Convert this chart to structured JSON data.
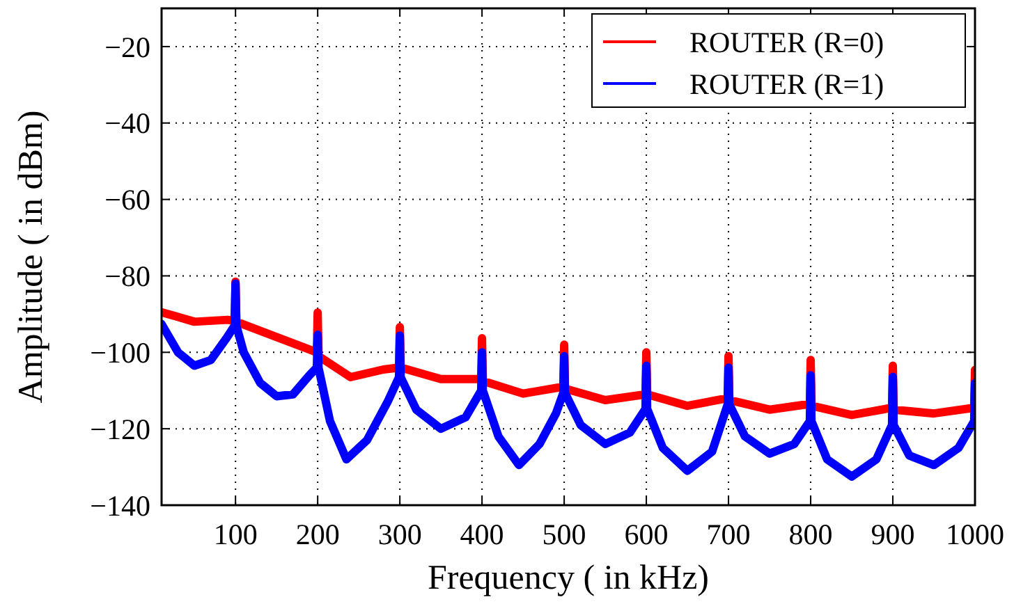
{
  "chart_data": {
    "type": "line",
    "xlabel": "Frequency ( in kHz)",
    "ylabel": "Amplitude ( in dBm)",
    "xlim": [
      10,
      1000
    ],
    "xticks": [
      100,
      200,
      300,
      400,
      500,
      600,
      700,
      800,
      900,
      1000
    ],
    "ylim": [
      -140,
      -10
    ],
    "yticks": [
      -140,
      -120,
      -100,
      -80,
      -60,
      -40,
      -20
    ],
    "grid": true,
    "legend": "top right",
    "line_style": "solid",
    "marker": "none",
    "series": [
      {
        "name": "ROUTER (R=0)",
        "color": "#ff0000",
        "x": [
          10,
          50,
          90,
          99,
          100,
          101,
          150,
          199,
          200,
          201,
          240,
          280,
          299,
          300,
          301,
          350,
          399,
          400,
          401,
          450,
          499,
          500,
          501,
          550,
          599,
          600,
          601,
          650,
          699,
          700,
          701,
          750,
          799,
          800,
          801,
          850,
          899,
          900,
          901,
          950,
          999,
          1000
        ],
        "values": [
          -89.5,
          -92,
          -91.5,
          -91.7,
          -81.5,
          -92,
          -96,
          -100,
          -89.6,
          -101,
          -106.5,
          -104.5,
          -104,
          -93.4,
          -104,
          -107,
          -107,
          -96.3,
          -107.5,
          -110.8,
          -109,
          -98,
          -109.5,
          -112.5,
          -111,
          -100,
          -111,
          -114,
          -112,
          -101,
          -112.5,
          -115,
          -113.5,
          -102,
          -114,
          -116.4,
          -114.5,
          -103.5,
          -115,
          -116,
          -114.5,
          -104.6
        ]
      },
      {
        "name": "ROUTER (R=1)",
        "color": "#0000ff",
        "x": [
          10,
          30,
          50,
          70,
          90,
          99,
          100,
          101,
          110,
          130,
          150,
          170,
          190,
          199,
          200,
          201,
          215,
          235,
          260,
          285,
          299,
          300,
          301,
          320,
          350,
          380,
          399,
          400,
          401,
          420,
          445,
          470,
          490,
          499,
          500,
          501,
          520,
          550,
          580,
          599,
          600,
          601,
          620,
          650,
          680,
          699,
          700,
          701,
          720,
          750,
          780,
          799,
          800,
          801,
          820,
          850,
          880,
          899,
          900,
          901,
          920,
          950,
          980,
          999,
          1000
        ],
        "values": [
          -92.6,
          -100,
          -103.5,
          -102,
          -96,
          -93,
          -82,
          -93,
          -100,
          -108,
          -111.5,
          -111,
          -106,
          -104,
          -95.4,
          -104,
          -118,
          -128,
          -123,
          -113,
          -106.5,
          -95.6,
          -106.5,
          -115,
          -120,
          -117,
          -110,
          -100,
          -110,
          -122,
          -129.5,
          -124,
          -116,
          -110.6,
          -101,
          -110.6,
          -119,
          -124,
          -121,
          -114.8,
          -103.5,
          -114.8,
          -125,
          -131,
          -126,
          -113.6,
          -104,
          -113.6,
          -122,
          -126.5,
          -124,
          -118,
          -106,
          -118,
          -128,
          -132.5,
          -128,
          -119,
          -106.4,
          -119,
          -127,
          -129.5,
          -125,
          -118,
          -108
        ]
      }
    ]
  }
}
